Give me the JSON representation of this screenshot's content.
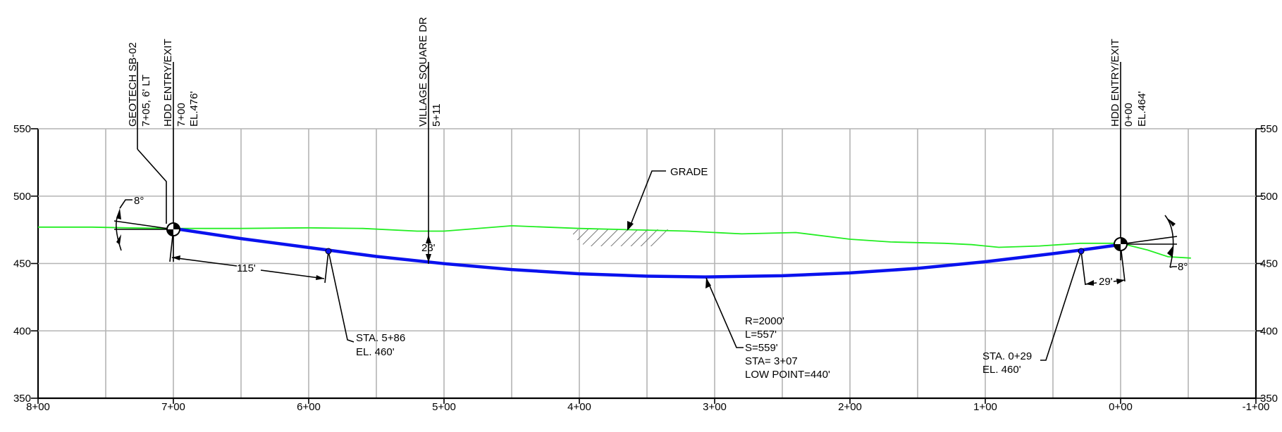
{
  "chart_data": {
    "type": "line",
    "title": "",
    "x_axis": {
      "reversed": true,
      "xlim": [
        -100,
        800
      ],
      "tick_labels": [
        "8+00",
        "7+00",
        "6+00",
        "5+00",
        "4+00",
        "3+00",
        "2+00",
        "1+00",
        "0+00",
        "-1+00"
      ]
    },
    "y_axis": {
      "ylim": [
        350,
        550
      ],
      "tick_labels": [
        "350",
        "400",
        "450",
        "500",
        "550"
      ]
    },
    "grid": "on",
    "series": [
      {
        "name": "GRADE",
        "color": "#22ee22",
        "x": [
          800,
          760,
          735,
          700,
          650,
          600,
          560,
          520,
          500,
          450,
          400,
          360,
          320,
          280,
          240,
          200,
          170,
          130,
          110,
          90,
          60,
          30,
          0,
          -20,
          -35,
          -52
        ],
        "y": [
          477,
          477,
          476.5,
          476,
          476,
          476.5,
          476,
          474,
          474,
          478,
          476,
          475,
          474,
          472,
          473,
          468,
          466,
          465,
          464,
          462,
          463,
          465,
          465,
          460,
          455,
          454
        ]
      },
      {
        "name": "",
        "color": "#0a12ee",
        "x": [
          700,
          650,
          586,
          550,
          500,
          450,
          400,
          350,
          307,
          250,
          200,
          150,
          100,
          50,
          29,
          0
        ],
        "y": [
          476,
          468.5,
          460,
          455.2,
          449.9,
          445.5,
          442.4,
          440.6,
          440,
          440.9,
          443,
          446.4,
          451.3,
          457.3,
          460,
          464
        ]
      }
    ],
    "callouts": {
      "geotech": {
        "line1": "GEOTECH SB-02",
        "line2": "7+05, 6' LT"
      },
      "entry_left": {
        "line1": "HDD ENTRY/EXIT",
        "line2": "7+00",
        "line3": "EL.476'"
      },
      "village": {
        "line1": "VILLAGE SQUARE DR",
        "line2": "5+11"
      },
      "entry_right": {
        "line1": "HDD ENTRY/EXIT",
        "line2": "0+00",
        "line3": "EL.464'"
      },
      "grade": "GRADE",
      "angle_left": "8°",
      "angle_right": "8°",
      "dim_115": "115'",
      "dim_23": "23'",
      "dim_29": "29'",
      "sta_586": {
        "line1": "STA. 5+86",
        "line2": "EL. 460'"
      },
      "sta_029": {
        "line1": "STA. 0+29",
        "line2": "EL. 460'"
      },
      "curve": [
        "R=2000'",
        "L=557'",
        "S=559'",
        "STA= 3+07",
        "LOW POINT=440'"
      ]
    }
  }
}
